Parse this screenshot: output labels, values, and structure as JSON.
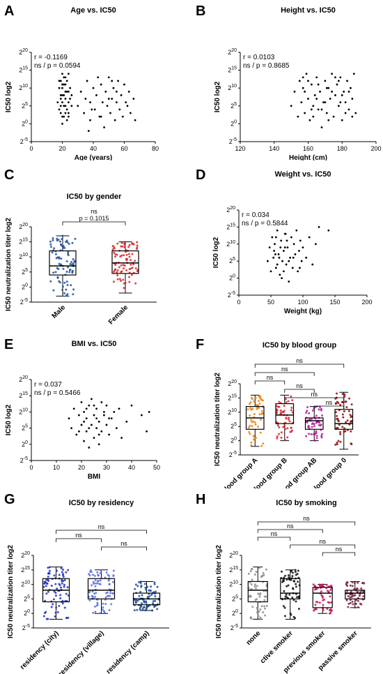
{
  "chart_data": [
    {
      "panel": "A",
      "type": "scatter",
      "title": "Age vs. IC50",
      "xlabel": "Age (years)",
      "ylabel": "IC50 log2",
      "xlim": [
        0,
        80
      ],
      "xticks": [
        "0",
        "20",
        "40",
        "60",
        "80"
      ],
      "xtick_values": [
        0,
        20,
        40,
        60,
        80
      ],
      "ylim": [
        -5,
        20
      ],
      "yticks": [
        "2^-5",
        "2^0",
        "2^5",
        "2^10",
        "2^15",
        "2^20"
      ],
      "stats": [
        "r = -0.1169",
        "ns / p = 0.0594"
      ],
      "points": [
        [
          18,
          4
        ],
        [
          19,
          8
        ],
        [
          19,
          12
        ],
        [
          20,
          2
        ],
        [
          20,
          6
        ],
        [
          20,
          10
        ],
        [
          21,
          5
        ],
        [
          21,
          13
        ],
        [
          22,
          3
        ],
        [
          22,
          7
        ],
        [
          22,
          11
        ],
        [
          23,
          1
        ],
        [
          23,
          9
        ],
        [
          24,
          6
        ],
        [
          24,
          14
        ],
        [
          17,
          6
        ],
        [
          18,
          10
        ],
        [
          20,
          0
        ],
        [
          21,
          8
        ],
        [
          22,
          5
        ],
        [
          19,
          3
        ],
        [
          20,
          14
        ],
        [
          21,
          11
        ],
        [
          23,
          4
        ],
        [
          24,
          9
        ],
        [
          25,
          7
        ],
        [
          26,
          5
        ],
        [
          18,
          12
        ],
        [
          19,
          7
        ],
        [
          22,
          9
        ],
        [
          24,
          3
        ],
        [
          25,
          10
        ],
        [
          20,
          8
        ],
        [
          21,
          2
        ],
        [
          23,
          12
        ],
        [
          19,
          5
        ],
        [
          20,
          11
        ],
        [
          22,
          13
        ],
        [
          24,
          2
        ],
        [
          26,
          8
        ],
        [
          30,
          5
        ],
        [
          32,
          9
        ],
        [
          34,
          3
        ],
        [
          35,
          7
        ],
        [
          36,
          12
        ],
        [
          38,
          1
        ],
        [
          38,
          6
        ],
        [
          40,
          10
        ],
        [
          41,
          4
        ],
        [
          42,
          8
        ],
        [
          44,
          2
        ],
        [
          45,
          11
        ],
        [
          46,
          6
        ],
        [
          47,
          -1
        ],
        [
          48,
          9
        ],
        [
          49,
          5
        ],
        [
          50,
          13
        ],
        [
          51,
          3
        ],
        [
          52,
          7
        ],
        [
          53,
          10
        ],
        [
          54,
          1
        ],
        [
          55,
          6
        ],
        [
          56,
          12
        ],
        [
          57,
          4
        ],
        [
          58,
          8
        ],
        [
          59,
          2
        ],
        [
          60,
          11
        ],
        [
          62,
          5
        ],
        [
          63,
          9
        ],
        [
          64,
          3
        ],
        [
          66,
          7
        ],
        [
          67,
          1
        ],
        [
          37,
          -2
        ],
        [
          43,
          13
        ],
        [
          50,
          7
        ],
        [
          55,
          9
        ],
        [
          61,
          6
        ],
        [
          39,
          4
        ],
        [
          45,
          2
        ],
        [
          52,
          12
        ]
      ]
    },
    {
      "panel": "B",
      "type": "scatter",
      "title": "Height vs. IC50",
      "xlabel": "Height (cm)",
      "ylabel": "IC50 log2",
      "xlim": [
        120,
        200
      ],
      "xticks": [
        "120",
        "140",
        "160",
        "180",
        "200"
      ],
      "xtick_values": [
        120,
        140,
        160,
        180,
        200
      ],
      "ylim": [
        -5,
        20
      ],
      "yticks": [
        "2^-5",
        "2^0",
        "2^5",
        "2^10",
        "2^15",
        "2^20"
      ],
      "stats": [
        "r = 0.0103",
        "ns / p = 0.8685"
      ],
      "points": [
        [
          150,
          5
        ],
        [
          152,
          9
        ],
        [
          154,
          2
        ],
        [
          155,
          12
        ],
        [
          156,
          6
        ],
        [
          157,
          10
        ],
        [
          158,
          3
        ],
        [
          159,
          14
        ],
        [
          160,
          7
        ],
        [
          161,
          1
        ],
        [
          162,
          11
        ],
        [
          163,
          5
        ],
        [
          164,
          8
        ],
        [
          165,
          13
        ],
        [
          166,
          4
        ],
        [
          167,
          9
        ],
        [
          168,
          -1
        ],
        [
          169,
          6
        ],
        [
          170,
          12
        ],
        [
          171,
          3
        ],
        [
          172,
          10
        ],
        [
          173,
          7
        ],
        [
          174,
          14
        ],
        [
          175,
          2
        ],
        [
          176,
          8
        ],
        [
          177,
          11
        ],
        [
          178,
          5
        ],
        [
          179,
          13
        ],
        [
          180,
          1
        ],
        [
          181,
          9
        ],
        [
          182,
          6
        ],
        [
          183,
          12
        ],
        [
          184,
          4
        ],
        [
          185,
          10
        ],
        [
          186,
          7
        ],
        [
          187,
          14
        ],
        [
          188,
          3
        ],
        [
          158,
          9
        ],
        [
          162,
          4
        ],
        [
          166,
          11
        ],
        [
          170,
          6
        ],
        [
          174,
          9
        ],
        [
          178,
          12
        ],
        [
          182,
          3
        ],
        [
          165,
          7
        ],
        [
          172,
          1
        ],
        [
          176,
          13
        ],
        [
          180,
          8
        ],
        [
          160,
          12
        ],
        [
          168,
          4
        ],
        [
          184,
          9
        ],
        [
          163,
          2
        ],
        [
          171,
          10
        ],
        [
          179,
          6
        ],
        [
          157,
          13
        ],
        [
          186,
          2
        ]
      ]
    },
    {
      "panel": "C",
      "type": "box",
      "title": "IC50 by gender",
      "ylabel": "IC50 neutralization titer log2",
      "ylim": [
        -5,
        20
      ],
      "yticks": [
        "2^-5",
        "2^0",
        "2^5",
        "2^10",
        "2^15",
        "2^20"
      ],
      "categories": [
        "Male",
        "Female"
      ],
      "colors": [
        "#1f4e9c",
        "#d9232a"
      ],
      "boxes": [
        {
          "min": -3,
          "q1": 4,
          "median": 7,
          "q3": 12,
          "max": 17
        },
        {
          "min": -2,
          "q1": 4.5,
          "median": 8,
          "q3": 12,
          "max": 15
        }
      ],
      "comparisons": [
        {
          "a": 0,
          "b": 1,
          "label": "ns",
          "p": "p = 0.1015"
        }
      ]
    },
    {
      "panel": "D",
      "type": "scatter",
      "title": "Weight vs. IC50",
      "xlabel": "Weight (kg)",
      "ylabel": "IC50 log2",
      "xlim": [
        0,
        200
      ],
      "xticks": [
        "0",
        "50",
        "100",
        "150",
        "200"
      ],
      "xtick_values": [
        0,
        50,
        100,
        150,
        200
      ],
      "ylim": [
        -5,
        20
      ],
      "yticks": [
        "2^-5",
        "2^0",
        "2^5",
        "2^10",
        "2^15",
        "2^20"
      ],
      "stats": [
        "r = 0.034",
        "ns / p = 0.5844"
      ],
      "points": [
        [
          45,
          5
        ],
        [
          48,
          9
        ],
        [
          50,
          2
        ],
        [
          52,
          12
        ],
        [
          54,
          6
        ],
        [
          56,
          10
        ],
        [
          58,
          3
        ],
        [
          60,
          14
        ],
        [
          62,
          7
        ],
        [
          64,
          1
        ],
        [
          66,
          11
        ],
        [
          68,
          5
        ],
        [
          70,
          8
        ],
        [
          72,
          13
        ],
        [
          74,
          4
        ],
        [
          76,
          9
        ],
        [
          78,
          -1
        ],
        [
          80,
          6
        ],
        [
          82,
          12
        ],
        [
          84,
          3
        ],
        [
          86,
          10
        ],
        [
          88,
          7
        ],
        [
          90,
          14
        ],
        [
          92,
          2
        ],
        [
          94,
          8
        ],
        [
          96,
          11
        ],
        [
          98,
          5
        ],
        [
          100,
          9
        ],
        [
          105,
          6
        ],
        [
          110,
          12
        ],
        [
          115,
          4
        ],
        [
          120,
          10
        ],
        [
          125,
          15
        ],
        [
          140,
          14
        ],
        [
          55,
          8
        ],
        [
          60,
          4
        ],
        [
          65,
          9
        ],
        [
          70,
          2
        ],
        [
          75,
          11
        ],
        [
          85,
          6
        ],
        [
          95,
          3
        ],
        [
          58,
          12
        ],
        [
          63,
          6
        ],
        [
          67,
          0
        ],
        [
          72,
          9
        ],
        [
          78,
          5
        ],
        [
          57,
          7
        ],
        [
          73,
          13
        ]
      ]
    },
    {
      "panel": "E",
      "type": "scatter",
      "title": "BMI vs. IC50",
      "xlabel": "BMI",
      "ylabel": "IC50 log2",
      "xlim": [
        0,
        50
      ],
      "xticks": [
        "0",
        "10",
        "20",
        "30",
        "40",
        "50"
      ],
      "xtick_values": [
        0,
        10,
        20,
        30,
        40,
        50
      ],
      "ylim": [
        -5,
        20
      ],
      "yticks": [
        "2^-5",
        "2^0",
        "2^5",
        "2^10",
        "2^15",
        "2^20"
      ],
      "stats": [
        "r = 0.037",
        "ns / p = 0.5466"
      ],
      "points": [
        [
          15,
          8
        ],
        [
          16,
          5
        ],
        [
          17,
          11
        ],
        [
          18,
          3
        ],
        [
          19,
          9
        ],
        [
          20,
          6
        ],
        [
          20,
          13
        ],
        [
          21,
          1
        ],
        [
          21,
          10
        ],
        [
          22,
          4
        ],
        [
          22,
          8
        ],
        [
          23,
          12
        ],
        [
          23,
          -1
        ],
        [
          24,
          6
        ],
        [
          24,
          14
        ],
        [
          25,
          2
        ],
        [
          25,
          9
        ],
        [
          26,
          5
        ],
        [
          26,
          11
        ],
        [
          27,
          7
        ],
        [
          27,
          0
        ],
        [
          28,
          13
        ],
        [
          28,
          4
        ],
        [
          29,
          9
        ],
        [
          30,
          6
        ],
        [
          30,
          12
        ],
        [
          31,
          3
        ],
        [
          32,
          8
        ],
        [
          33,
          10
        ],
        [
          34,
          5
        ],
        [
          35,
          11
        ],
        [
          36,
          2
        ],
        [
          38,
          7
        ],
        [
          40,
          12
        ],
        [
          44,
          9
        ],
        [
          46,
          4
        ],
        [
          47,
          10
        ],
        [
          21,
          7
        ],
        [
          23,
          5
        ],
        [
          25,
          12
        ],
        [
          27,
          3
        ],
        [
          29,
          10
        ],
        [
          31,
          8
        ],
        [
          19,
          4
        ],
        [
          22,
          11
        ],
        [
          26,
          8
        ]
      ]
    },
    {
      "panel": "F",
      "type": "box",
      "title": "IC50 by blood group",
      "ylabel": "IC50 neutralization titer log2",
      "ylim": [
        -5,
        20
      ],
      "yticks": [
        "2^-5",
        "2^0",
        "2^5",
        "2^10",
        "2^15",
        "2^20"
      ],
      "categories": [
        "blood group A",
        "blood group B",
        "blood group AB",
        "blood group 0"
      ],
      "colors": [
        "#e8820c",
        "#d9232a",
        "#b5179e",
        "#8b0a0a"
      ],
      "boxes": [
        {
          "min": -2,
          "q1": 4,
          "median": 8,
          "q3": 12,
          "max": 16
        },
        {
          "min": 0,
          "q1": 6,
          "median": 9,
          "q3": 13,
          "max": 16
        },
        {
          "min": 0,
          "q1": 4,
          "median": 7,
          "q3": 8,
          "max": 12
        },
        {
          "min": -3,
          "q1": 4,
          "median": 6,
          "q3": 11,
          "max": 17
        }
      ],
      "comparisons": [
        {
          "a": 0,
          "b": 3,
          "label": "ns"
        },
        {
          "a": 0,
          "b": 2,
          "label": "ns"
        },
        {
          "a": 0,
          "b": 1,
          "label": "ns"
        },
        {
          "a": 1,
          "b": 2,
          "label": "ns"
        },
        {
          "a": 1,
          "b": 3,
          "label": "ns"
        },
        {
          "a": 2,
          "b": 3,
          "label": "ns"
        }
      ]
    },
    {
      "panel": "G",
      "type": "box",
      "title": "IC50 by residency",
      "ylabel": "IC50 neutralization titer log2",
      "ylim": [
        -5,
        20
      ],
      "yticks": [
        "2^-5",
        "2^0",
        "2^5",
        "2^10",
        "2^15",
        "2^20"
      ],
      "categories": [
        "residency (city)",
        "residency (village)",
        "residency (camp)"
      ],
      "colors": [
        "#1f2fbf",
        "#5a6ee0",
        "#1f4e9c"
      ],
      "boxes": [
        {
          "min": -2,
          "q1": 4,
          "median": 8,
          "q3": 12,
          "max": 16
        },
        {
          "min": 0,
          "q1": 5,
          "median": 8,
          "q3": 12,
          "max": 15
        },
        {
          "min": 1,
          "q1": 3,
          "median": 5,
          "q3": 7,
          "max": 11
        }
      ],
      "comparisons": [
        {
          "a": 0,
          "b": 2,
          "label": "ns"
        },
        {
          "a": 0,
          "b": 1,
          "label": "ns"
        },
        {
          "a": 1,
          "b": 2,
          "label": "ns"
        }
      ]
    },
    {
      "panel": "H",
      "type": "box",
      "title": "IC50 by smoking",
      "ylabel": "IC50 neutralization titer log2",
      "ylim": [
        -5,
        20
      ],
      "yticks": [
        "2^-5",
        "2^0",
        "2^5",
        "2^10",
        "2^15",
        "2^20"
      ],
      "categories": [
        "none",
        "ctive smoker",
        "previous smoker",
        "passive smoker"
      ],
      "colors": [
        "#8c8c8c",
        "#111111",
        "#c2185b",
        "#7a1f3d"
      ],
      "boxes": [
        {
          "min": -2,
          "q1": 4,
          "median": 8,
          "q3": 11,
          "max": 16
        },
        {
          "min": -2,
          "q1": 5,
          "median": 7,
          "q3": 12,
          "max": 15
        },
        {
          "min": 0,
          "q1": 2,
          "median": 7,
          "q3": 9,
          "max": 10
        },
        {
          "min": 2,
          "q1": 5,
          "median": 7,
          "q3": 8,
          "max": 11
        }
      ],
      "comparisons": [
        {
          "a": 0,
          "b": 3,
          "label": "ns"
        },
        {
          "a": 0,
          "b": 2,
          "label": "ns"
        },
        {
          "a": 0,
          "b": 1,
          "label": "ns"
        },
        {
          "a": 1,
          "b": 3,
          "label": "ns"
        },
        {
          "a": 2,
          "b": 3,
          "label": "ns"
        }
      ]
    }
  ]
}
